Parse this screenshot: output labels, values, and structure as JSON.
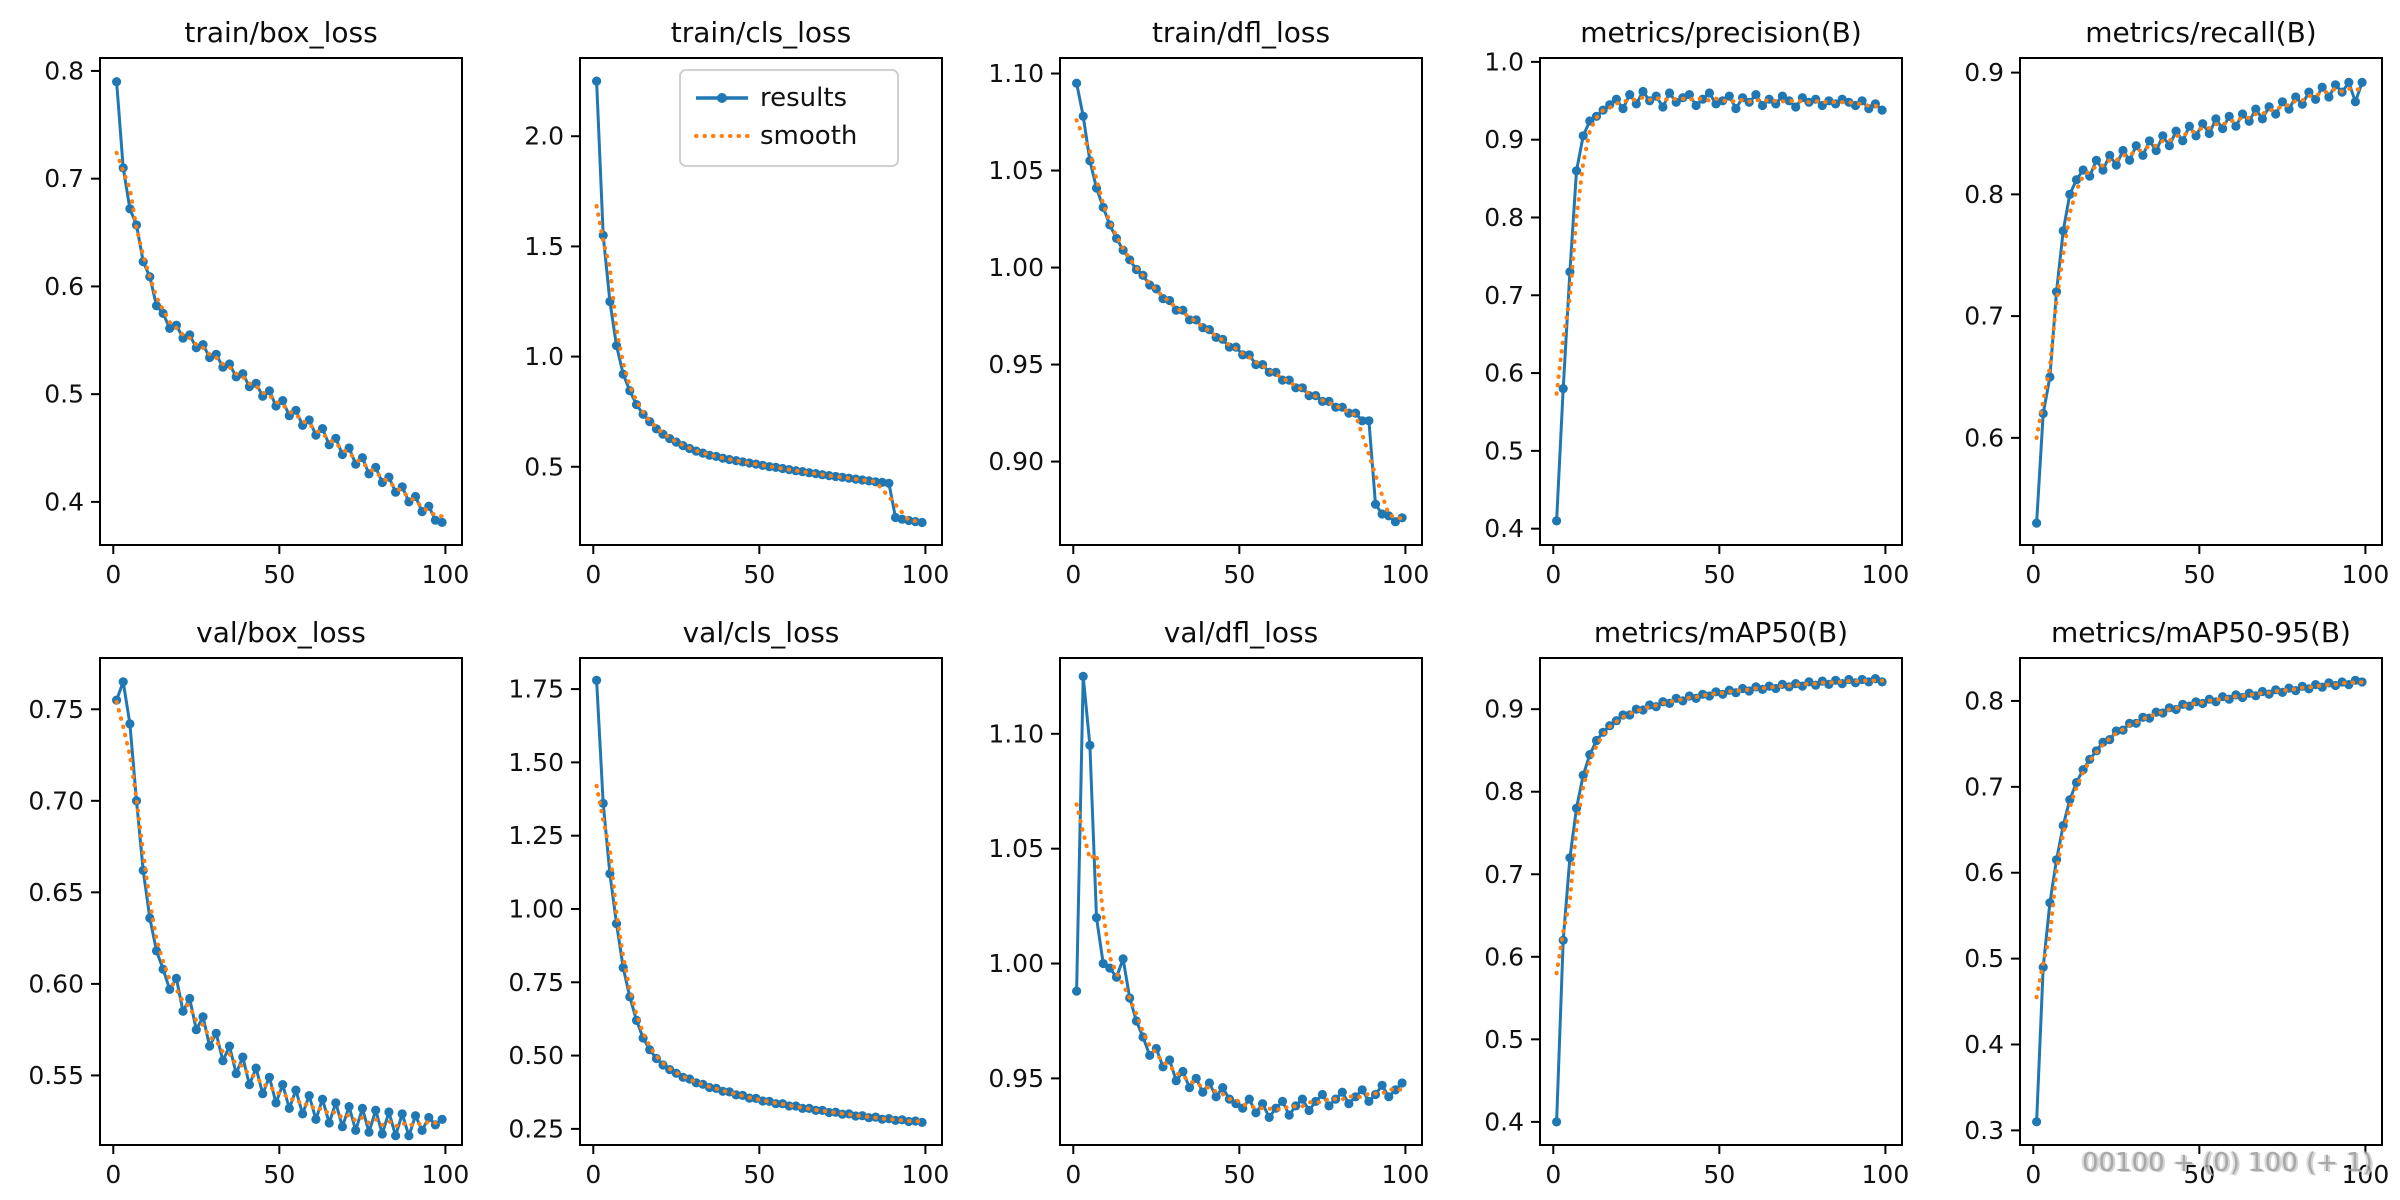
{
  "figure": {
    "background": "#ffffff",
    "line_color": "#1f77b4",
    "smooth_color": "#ff7f0e",
    "legend": {
      "labels": [
        "results",
        "smooth"
      ]
    },
    "artifact_text": "00100 + (0) 100 (+ 1)"
  },
  "chart_data": {
    "type": "line",
    "grid": "2x5",
    "legend_position": "upper-center subplot train/cls_loss",
    "x": [
      1,
      3,
      5,
      7,
      9,
      11,
      13,
      15,
      17,
      19,
      21,
      23,
      25,
      27,
      29,
      31,
      33,
      35,
      37,
      39,
      41,
      43,
      45,
      47,
      49,
      51,
      53,
      55,
      57,
      59,
      61,
      63,
      65,
      67,
      69,
      71,
      73,
      75,
      77,
      79,
      81,
      83,
      85,
      87,
      89,
      91,
      93,
      95,
      97,
      99
    ],
    "xlim": [
      -4,
      105
    ],
    "xticks": [
      0,
      50,
      100
    ],
    "xtick_labels": [
      "0",
      "50",
      "100"
    ],
    "smooth_window": 5,
    "charts": [
      {
        "title": "train/box_loss",
        "legend": false,
        "ylim": [
          0.36,
          0.812
        ],
        "yticks": [
          0.4,
          0.5,
          0.6,
          0.7,
          0.8
        ],
        "ytick_labels": [
          "0.4",
          "0.5",
          "0.6",
          "0.7",
          "0.8"
        ],
        "series": [
          {
            "name": "results",
            "y": [
              0.79,
              0.71,
              0.672,
              0.657,
              0.623,
              0.609,
              0.582,
              0.575,
              0.561,
              0.564,
              0.552,
              0.555,
              0.543,
              0.546,
              0.534,
              0.537,
              0.525,
              0.528,
              0.516,
              0.519,
              0.507,
              0.51,
              0.498,
              0.503,
              0.489,
              0.494,
              0.48,
              0.485,
              0.471,
              0.476,
              0.462,
              0.468,
              0.453,
              0.459,
              0.444,
              0.45,
              0.435,
              0.441,
              0.426,
              0.432,
              0.418,
              0.423,
              0.409,
              0.414,
              0.4,
              0.405,
              0.391,
              0.396,
              0.383,
              0.381
            ]
          }
        ]
      },
      {
        "title": "train/cls_loss",
        "legend": true,
        "ylim": [
          0.145,
          2.355
        ],
        "yticks": [
          0.5,
          1.0,
          1.5,
          2.0
        ],
        "ytick_labels": [
          "0.5",
          "1.0",
          "1.5",
          "2.0"
        ],
        "series": [
          {
            "name": "results",
            "y": [
              2.25,
              1.55,
              1.25,
              1.05,
              0.92,
              0.845,
              0.782,
              0.738,
              0.705,
              0.672,
              0.648,
              0.628,
              0.612,
              0.596,
              0.583,
              0.571,
              0.562,
              0.552,
              0.547,
              0.539,
              0.533,
              0.528,
              0.522,
              0.517,
              0.512,
              0.506,
              0.501,
              0.497,
              0.492,
              0.487,
              0.482,
              0.478,
              0.473,
              0.469,
              0.464,
              0.46,
              0.456,
              0.452,
              0.448,
              0.444,
              0.44,
              0.436,
              0.432,
              0.429,
              0.425,
              0.27,
              0.262,
              0.256,
              0.251,
              0.247
            ]
          }
        ]
      },
      {
        "title": "train/dfl_loss",
        "legend": false,
        "ylim": [
          0.857,
          1.108
        ],
        "yticks": [
          0.9,
          0.95,
          1.0,
          1.05,
          1.1
        ],
        "ytick_labels": [
          "0.90",
          "0.95",
          "1.00",
          "1.05",
          "1.10"
        ],
        "series": [
          {
            "name": "results",
            "y": [
              1.095,
              1.078,
              1.055,
              1.041,
              1.031,
              1.022,
              1.015,
              1.009,
              1.004,
              0.999,
              0.996,
              0.991,
              0.989,
              0.984,
              0.983,
              0.978,
              0.978,
              0.973,
              0.973,
              0.969,
              0.968,
              0.964,
              0.963,
              0.959,
              0.959,
              0.955,
              0.955,
              0.95,
              0.95,
              0.946,
              0.946,
              0.942,
              0.942,
              0.938,
              0.938,
              0.934,
              0.934,
              0.931,
              0.931,
              0.928,
              0.928,
              0.925,
              0.925,
              0.921,
              0.921,
              0.878,
              0.873,
              0.872,
              0.869,
              0.871
            ]
          }
        ]
      },
      {
        "title": "metrics/precision(B)",
        "legend": false,
        "ylim": [
          0.379,
          1.005
        ],
        "yticks": [
          0.4,
          0.5,
          0.6,
          0.7,
          0.8,
          0.9,
          1.0
        ],
        "ytick_labels": [
          "0.4",
          "0.5",
          "0.6",
          "0.7",
          "0.8",
          "0.9",
          "1.0"
        ],
        "series": [
          {
            "name": "results",
            "y": [
              0.41,
              0.58,
              0.73,
              0.86,
              0.905,
              0.924,
              0.93,
              0.938,
              0.945,
              0.952,
              0.94,
              0.958,
              0.946,
              0.962,
              0.95,
              0.956,
              0.942,
              0.96,
              0.948,
              0.954,
              0.958,
              0.944,
              0.952,
              0.96,
              0.946,
              0.95,
              0.956,
              0.94,
              0.954,
              0.948,
              0.958,
              0.944,
              0.952,
              0.946,
              0.956,
              0.95,
              0.942,
              0.954,
              0.948,
              0.952,
              0.944,
              0.95,
              0.946,
              0.952,
              0.948,
              0.944,
              0.95,
              0.94,
              0.946,
              0.938
            ]
          }
        ]
      },
      {
        "title": "metrics/recall(B)",
        "legend": false,
        "ylim": [
          0.512,
          0.912
        ],
        "yticks": [
          0.6,
          0.7,
          0.8,
          0.9
        ],
        "ytick_labels": [
          "0.6",
          "0.7",
          "0.8",
          "0.9"
        ],
        "series": [
          {
            "name": "results",
            "y": [
              0.53,
              0.62,
              0.65,
              0.72,
              0.77,
              0.8,
              0.812,
              0.82,
              0.815,
              0.828,
              0.82,
              0.832,
              0.824,
              0.836,
              0.828,
              0.84,
              0.832,
              0.844,
              0.836,
              0.848,
              0.84,
              0.852,
              0.844,
              0.856,
              0.848,
              0.858,
              0.85,
              0.862,
              0.854,
              0.864,
              0.856,
              0.866,
              0.86,
              0.87,
              0.862,
              0.872,
              0.866,
              0.876,
              0.87,
              0.88,
              0.874,
              0.884,
              0.878,
              0.888,
              0.88,
              0.89,
              0.884,
              0.892,
              0.876,
              0.892
            ]
          }
        ]
      },
      {
        "title": "val/box_loss",
        "legend": false,
        "ylim": [
          0.512,
          0.778
        ],
        "yticks": [
          0.55,
          0.6,
          0.65,
          0.7,
          0.75
        ],
        "ytick_labels": [
          "0.55",
          "0.60",
          "0.65",
          "0.70",
          "0.75"
        ],
        "series": [
          {
            "name": "results",
            "y": [
              0.755,
              0.765,
              0.742,
              0.7,
              0.662,
              0.636,
              0.618,
              0.608,
              0.597,
              0.603,
              0.585,
              0.592,
              0.575,
              0.582,
              0.566,
              0.573,
              0.558,
              0.566,
              0.551,
              0.56,
              0.545,
              0.554,
              0.54,
              0.549,
              0.535,
              0.545,
              0.532,
              0.542,
              0.529,
              0.539,
              0.526,
              0.537,
              0.524,
              0.535,
              0.522,
              0.533,
              0.52,
              0.532,
              0.519,
              0.531,
              0.518,
              0.53,
              0.517,
              0.529,
              0.517,
              0.528,
              0.52,
              0.527,
              0.523,
              0.526
            ]
          }
        ]
      },
      {
        "title": "val/cls_loss",
        "legend": false,
        "ylim": [
          0.195,
          1.856
        ],
        "yticks": [
          0.25,
          0.5,
          0.75,
          1.0,
          1.25,
          1.5,
          1.75
        ],
        "ytick_labels": [
          "0.25",
          "0.50",
          "0.75",
          "1.00",
          "1.25",
          "1.50",
          "1.75"
        ],
        "series": [
          {
            "name": "results",
            "y": [
              1.78,
              1.36,
              1.12,
              0.95,
              0.8,
              0.7,
              0.62,
              0.56,
              0.52,
              0.49,
              0.468,
              0.452,
              0.44,
              0.426,
              0.42,
              0.407,
              0.402,
              0.391,
              0.388,
              0.378,
              0.376,
              0.366,
              0.364,
              0.355,
              0.354,
              0.345,
              0.344,
              0.336,
              0.336,
              0.328,
              0.328,
              0.32,
              0.32,
              0.313,
              0.313,
              0.306,
              0.307,
              0.3,
              0.301,
              0.294,
              0.295,
              0.288,
              0.29,
              0.283,
              0.285,
              0.279,
              0.281,
              0.275,
              0.277,
              0.272
            ]
          }
        ]
      },
      {
        "title": "val/dfl_loss",
        "legend": false,
        "ylim": [
          0.921,
          1.133
        ],
        "yticks": [
          0.95,
          1.0,
          1.05,
          1.1
        ],
        "ytick_labels": [
          "0.95",
          "1.00",
          "1.05",
          "1.10"
        ],
        "series": [
          {
            "name": "results",
            "y": [
              0.988,
              1.125,
              1.095,
              1.02,
              1.0,
              0.998,
              0.994,
              1.002,
              0.985,
              0.975,
              0.968,
              0.96,
              0.963,
              0.955,
              0.958,
              0.949,
              0.953,
              0.946,
              0.95,
              0.944,
              0.948,
              0.942,
              0.946,
              0.941,
              0.939,
              0.937,
              0.941,
              0.935,
              0.939,
              0.933,
              0.937,
              0.94,
              0.934,
              0.938,
              0.941,
              0.936,
              0.94,
              0.943,
              0.938,
              0.941,
              0.944,
              0.939,
              0.942,
              0.945,
              0.94,
              0.943,
              0.947,
              0.942,
              0.945,
              0.948
            ]
          }
        ]
      },
      {
        "title": "metrics/mAP50(B)",
        "legend": false,
        "ylim": [
          0.372,
          0.962
        ],
        "yticks": [
          0.4,
          0.5,
          0.6,
          0.7,
          0.8,
          0.9
        ],
        "ytick_labels": [
          "0.4",
          "0.5",
          "0.6",
          "0.7",
          "0.8",
          "0.9"
        ],
        "series": [
          {
            "name": "results",
            "y": [
              0.4,
              0.62,
              0.72,
              0.78,
              0.82,
              0.845,
              0.862,
              0.872,
              0.88,
              0.886,
              0.893,
              0.893,
              0.9,
              0.899,
              0.905,
              0.903,
              0.909,
              0.907,
              0.913,
              0.91,
              0.916,
              0.913,
              0.918,
              0.916,
              0.921,
              0.918,
              0.923,
              0.92,
              0.925,
              0.922,
              0.927,
              0.924,
              0.928,
              0.925,
              0.93,
              0.927,
              0.931,
              0.928,
              0.933,
              0.929,
              0.934,
              0.93,
              0.935,
              0.931,
              0.936,
              0.932,
              0.936,
              0.933,
              0.937,
              0.933
            ]
          }
        ]
      },
      {
        "title": "metrics/mAP50-95(B)",
        "legend": false,
        "ylim": [
          0.283,
          0.85
        ],
        "yticks": [
          0.3,
          0.4,
          0.5,
          0.6,
          0.7,
          0.8
        ],
        "ytick_labels": [
          "0.3",
          "0.4",
          "0.5",
          "0.6",
          "0.7",
          "0.8"
        ],
        "series": [
          {
            "name": "results",
            "y": [
              0.31,
              0.49,
              0.565,
              0.615,
              0.655,
              0.685,
              0.705,
              0.72,
              0.732,
              0.742,
              0.752,
              0.755,
              0.765,
              0.766,
              0.774,
              0.774,
              0.781,
              0.78,
              0.787,
              0.786,
              0.792,
              0.79,
              0.796,
              0.794,
              0.799,
              0.797,
              0.802,
              0.799,
              0.805,
              0.802,
              0.807,
              0.804,
              0.809,
              0.806,
              0.811,
              0.808,
              0.813,
              0.81,
              0.815,
              0.812,
              0.817,
              0.814,
              0.819,
              0.816,
              0.821,
              0.818,
              0.822,
              0.819,
              0.824,
              0.822
            ]
          }
        ]
      }
    ]
  }
}
